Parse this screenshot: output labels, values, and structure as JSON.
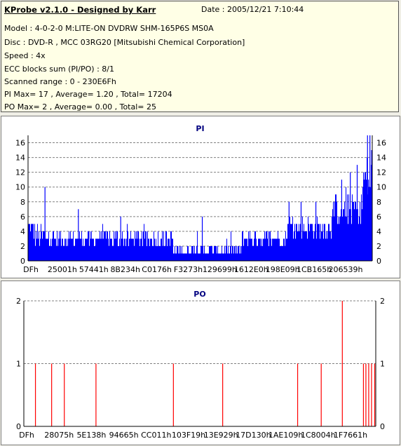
{
  "header": {
    "app_title": "KProbe v2.1.0 - Designed by Karr",
    "date": "Date : 2005/12/21 7:10:44",
    "lines": [
      "Model : 4-0-2-0 M:LITE-ON DVDRW SHM-165P6S MS0A",
      "Disc : DVD-R , MCC 03RG20   [Mitsubishi Chemical Corporation]",
      "Speed : 4x",
      "ECC blocks sum (PI/PO) : 8/1",
      "Scanned range : 0 - 230E6Fh",
      "PI Max= 17 , Average= 1.20 , Total= 17204",
      "PO Max= 2 , Average= 0.00 , Total= 25"
    ]
  },
  "chart_data": [
    {
      "type": "bar",
      "title": "PI",
      "ylim": [
        0,
        17
      ],
      "yticks": [
        0,
        2,
        4,
        6,
        8,
        10,
        12,
        14,
        16
      ],
      "xticklabels": [
        "DFh",
        "25001h",
        "57441h",
        "8B234h",
        "C0176h",
        "F3273h",
        "129699h",
        "1612E0h",
        "198E09h",
        "1CB165h",
        "206539h"
      ],
      "grid": true,
      "color": "#0000ff",
      "segments": [
        {
          "from": 0.0,
          "to": 0.015,
          "base": 3,
          "amp": 3
        },
        {
          "from": 0.015,
          "to": 0.05,
          "base": 2,
          "amp": 3
        },
        {
          "from": 0.05,
          "to": 0.2,
          "base": 2,
          "amp": 2
        },
        {
          "from": 0.2,
          "to": 0.42,
          "base": 2,
          "amp": 2
        },
        {
          "from": 0.42,
          "to": 0.62,
          "base": 1,
          "amp": 1
        },
        {
          "from": 0.62,
          "to": 0.75,
          "base": 2,
          "amp": 2
        },
        {
          "from": 0.75,
          "to": 0.88,
          "base": 3,
          "amp": 3
        },
        {
          "from": 0.88,
          "to": 0.97,
          "base": 5,
          "amp": 4
        },
        {
          "from": 0.97,
          "to": 1.0,
          "base": 8,
          "amp": 6
        }
      ],
      "spikes": [
        {
          "x": 0.048,
          "v": 10
        },
        {
          "x": 0.145,
          "v": 7
        },
        {
          "x": 0.268,
          "v": 6
        },
        {
          "x": 0.505,
          "v": 6
        },
        {
          "x": 0.757,
          "v": 8
        },
        {
          "x": 0.792,
          "v": 8
        },
        {
          "x": 0.835,
          "v": 8
        },
        {
          "x": 0.91,
          "v": 11
        },
        {
          "x": 0.935,
          "v": 12
        },
        {
          "x": 0.955,
          "v": 13
        },
        {
          "x": 0.985,
          "v": 17
        },
        {
          "x": 0.992,
          "v": 17
        },
        {
          "x": 0.997,
          "v": 15
        }
      ]
    },
    {
      "type": "bar",
      "title": "PO",
      "ylim": [
        0,
        2
      ],
      "yticks": [
        0,
        1,
        2
      ],
      "xticklabels": [
        "DFh",
        "28075h",
        "5E138h",
        "94665h",
        "CC011h",
        "103F19h",
        "13E929h",
        "17D130h",
        "1AE109h",
        "1C8004h",
        "1F7661h"
      ],
      "grid": true,
      "color": "#ff0000",
      "x": [
        0.033,
        0.079,
        0.115,
        0.205,
        0.425,
        0.565,
        0.778,
        0.845,
        0.905,
        0.965,
        0.972,
        0.98,
        0.988,
        0.997
      ],
      "values": [
        1,
        1,
        1,
        1,
        1,
        1,
        1,
        1,
        2,
        1,
        1,
        1,
        1,
        1
      ]
    }
  ]
}
